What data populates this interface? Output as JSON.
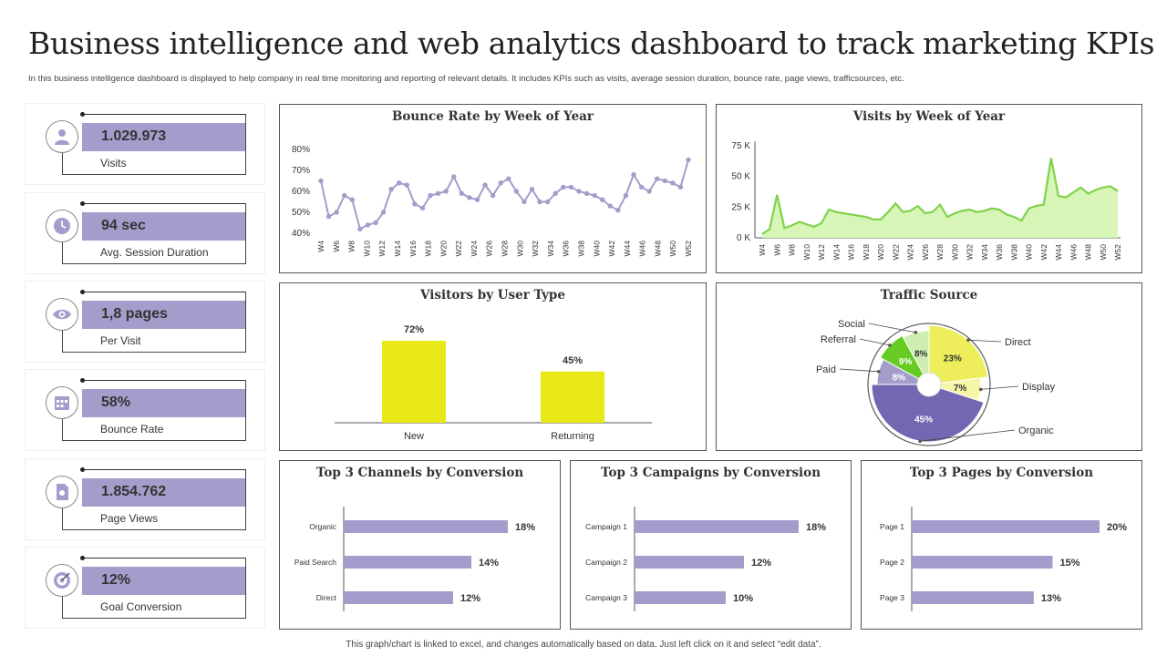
{
  "page": {
    "title": "Business intelligence and web analytics dashboard to track marketing KPIs",
    "subtitle": "In this business intelligence dashboard is displayed to help company in real time monitoring and reporting of relevant details. It includes KPIs such as visits, average session duration, bounce rate, page views, trafficsources, etc.",
    "footer": "This graph/chart is linked to excel, and changes automatically based on data. Just left click on it and select “edit data”."
  },
  "kpis": [
    {
      "value": "1.029.973",
      "label": "Visits",
      "icon": "user-icon"
    },
    {
      "value": "94 sec",
      "label": "Avg. Session Duration",
      "icon": "clock-icon"
    },
    {
      "value": "1,8 pages",
      "label": "Per Visit",
      "icon": "eye-icon"
    },
    {
      "value": " 58%",
      "label": "Bounce Rate",
      "icon": "calendar-icon"
    },
    {
      "value": "1.854.762",
      "label": "Page Views",
      "icon": "document-icon"
    },
    {
      "value": "12%",
      "label": "Goal Conversion",
      "icon": "target-icon"
    }
  ],
  "colors": {
    "purple": "#a39dcc",
    "dark_purple": "#7466b0",
    "yellow": "#e8e817",
    "green": "#7fd34a",
    "light_green": "#d8f5b8"
  },
  "chart_data": [
    {
      "id": "bounce",
      "type": "line",
      "title": "Bounce Rate by Week of Year",
      "ylim": [
        40,
        80
      ],
      "yticks": [
        "80%",
        "70%",
        "60%",
        "50%",
        "40%"
      ],
      "ytick_values": [
        80,
        70,
        60,
        50,
        40
      ],
      "x_labels": [
        "W4",
        "W6",
        "W8",
        "W10",
        "W12",
        "W14",
        "W16",
        "W18",
        "W20",
        "W22",
        "W24",
        "W26",
        "W28",
        "W30",
        "W32",
        "W34",
        "W36",
        "W38",
        "W40",
        "W42",
        "W44",
        "W46",
        "W48",
        "W50",
        "W52"
      ],
      "values": [
        65,
        48,
        50,
        58,
        56,
        42,
        44,
        45,
        50,
        61,
        64,
        63,
        54,
        52,
        58,
        59,
        60,
        67,
        59,
        57,
        56,
        63,
        58,
        64,
        66,
        60,
        55,
        61,
        55,
        55,
        59,
        62,
        62,
        60,
        59,
        58,
        56,
        53,
        51,
        58,
        68,
        62,
        60,
        66,
        65,
        64,
        62,
        75
      ]
    },
    {
      "id": "visits",
      "type": "area",
      "title": "Visits by Week of Year",
      "ylim": [
        0,
        75000
      ],
      "yticks": [
        "75 K",
        "50 K",
        "25 K",
        "0 K"
      ],
      "ytick_values": [
        75000,
        50000,
        25000,
        0
      ],
      "x_labels": [
        "W4",
        "W6",
        "W8",
        "W10",
        "W12",
        "W14",
        "W16",
        "W18",
        "W20",
        "W22",
        "W24",
        "W26",
        "W28",
        "W30",
        "W32",
        "W34",
        "W36",
        "W38",
        "W40",
        "W42",
        "W44",
        "W46",
        "W48",
        "W50",
        "W52"
      ],
      "values": [
        3000,
        7000,
        35000,
        8000,
        10000,
        13000,
        11000,
        9000,
        12000,
        23000,
        21000,
        20000,
        19000,
        18000,
        17000,
        15000,
        15000,
        21000,
        28000,
        21000,
        22000,
        26000,
        20000,
        21000,
        27000,
        17000,
        20000,
        22000,
        23000,
        21000,
        22000,
        24000,
        23000,
        19000,
        17000,
        14000,
        24000,
        26000,
        27000,
        65000,
        34000,
        33000,
        37000,
        41000,
        36000,
        39000,
        41000,
        42000,
        38000
      ]
    },
    {
      "id": "usertype",
      "type": "bar",
      "title": "Visitors by User Type",
      "categories": [
        "New",
        "Returning"
      ],
      "values": [
        72,
        45
      ],
      "labels": [
        "72%",
        "45%"
      ]
    },
    {
      "id": "traffic",
      "type": "pie",
      "title": "Traffic Source",
      "slices": [
        {
          "name": "Direct",
          "value": 23,
          "label": "23%",
          "color": "#eeee5c"
        },
        {
          "name": "Display",
          "value": 7,
          "label": "7%",
          "color": "#f6f6a8"
        },
        {
          "name": "Organic",
          "value": 45,
          "label": "45%",
          "color": "#7466b0"
        },
        {
          "name": "Paid",
          "value": 8,
          "label": "8%",
          "color": "#a39dcc"
        },
        {
          "name": "Referral",
          "value": 9,
          "label": "9%",
          "color": "#66cc22"
        },
        {
          "name": "Social",
          "value": 8,
          "label": "8%",
          "color": "#cdeeb0"
        }
      ]
    },
    {
      "id": "channels",
      "type": "bar",
      "orientation": "horizontal",
      "title": "Top 3 Channels by Conversion",
      "categories": [
        "Organic",
        "Paid Search",
        "Direct"
      ],
      "values": [
        18,
        14,
        12
      ],
      "labels": [
        "18%",
        "14%",
        "12%"
      ]
    },
    {
      "id": "campaigns",
      "type": "bar",
      "orientation": "horizontal",
      "title": "Top 3 Campaigns by Conversion",
      "categories": [
        "Campaign 1",
        "Campaign 2",
        "Campaign 3"
      ],
      "values": [
        18,
        12,
        10
      ],
      "labels": [
        "18%",
        "12%",
        "10%"
      ]
    },
    {
      "id": "pages",
      "type": "bar",
      "orientation": "horizontal",
      "title": "Top 3 Pages by Conversion",
      "categories": [
        "Page 1",
        "Page 2",
        "Page 3"
      ],
      "values": [
        20,
        15,
        13
      ],
      "labels": [
        "20%",
        "15%",
        "13%"
      ]
    }
  ]
}
